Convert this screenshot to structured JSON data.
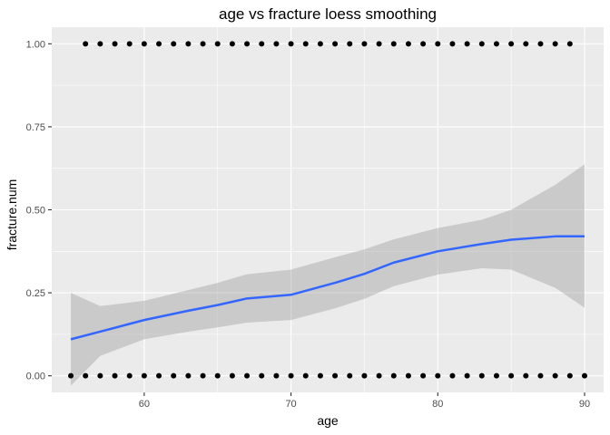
{
  "chart_data": {
    "type": "scatter",
    "title": "age vs fracture loess smoothing",
    "xlabel": "age",
    "ylabel": "fracture.num",
    "xlim": [
      53.7,
      91.3
    ],
    "ylim": [
      -0.05,
      1.05
    ],
    "x_ticks": [
      60,
      70,
      80,
      90
    ],
    "x_tick_labels": [
      "60",
      "70",
      "80",
      "90"
    ],
    "y_ticks": [
      0,
      0.25,
      0.5,
      0.75,
      1
    ],
    "y_tick_labels": [
      "0.00",
      "0.25",
      "0.50",
      "0.75",
      "1.00"
    ],
    "grid": true,
    "legend": "none",
    "colors": {
      "panel": "#ebebeb",
      "grid": "#ffffff",
      "points": "#000000",
      "smooth_line": "#3366ff",
      "ribbon": "#999999"
    },
    "points": {
      "y0_x": [
        55,
        56,
        57,
        58,
        59,
        60,
        61,
        62,
        63,
        64,
        65,
        66,
        67,
        68,
        69,
        70,
        71,
        72,
        73,
        74,
        75,
        76,
        77,
        78,
        79,
        80,
        81,
        82,
        83,
        84,
        85,
        86,
        87,
        88,
        89,
        90
      ],
      "y1_x": [
        56,
        57,
        58,
        59,
        60,
        61,
        62,
        63,
        64,
        65,
        66,
        67,
        68,
        69,
        70,
        71,
        72,
        73,
        74,
        75,
        76,
        77,
        78,
        79,
        80,
        81,
        82,
        83,
        84,
        85,
        86,
        87,
        88,
        89
      ]
    },
    "smooth": {
      "x": [
        55,
        57,
        60,
        63,
        65,
        67,
        70,
        73,
        75,
        77,
        80,
        83,
        85,
        88,
        90
      ],
      "y": [
        0.11,
        0.133,
        0.168,
        0.196,
        0.213,
        0.233,
        0.244,
        0.28,
        0.307,
        0.341,
        0.375,
        0.397,
        0.41,
        0.42,
        0.42
      ],
      "lower": [
        -0.03,
        0.06,
        0.11,
        0.133,
        0.146,
        0.16,
        0.168,
        0.203,
        0.232,
        0.27,
        0.305,
        0.324,
        0.32,
        0.265,
        0.205
      ],
      "upper": [
        0.25,
        0.21,
        0.226,
        0.258,
        0.28,
        0.306,
        0.32,
        0.357,
        0.381,
        0.411,
        0.445,
        0.47,
        0.5,
        0.575,
        0.637
      ]
    }
  }
}
